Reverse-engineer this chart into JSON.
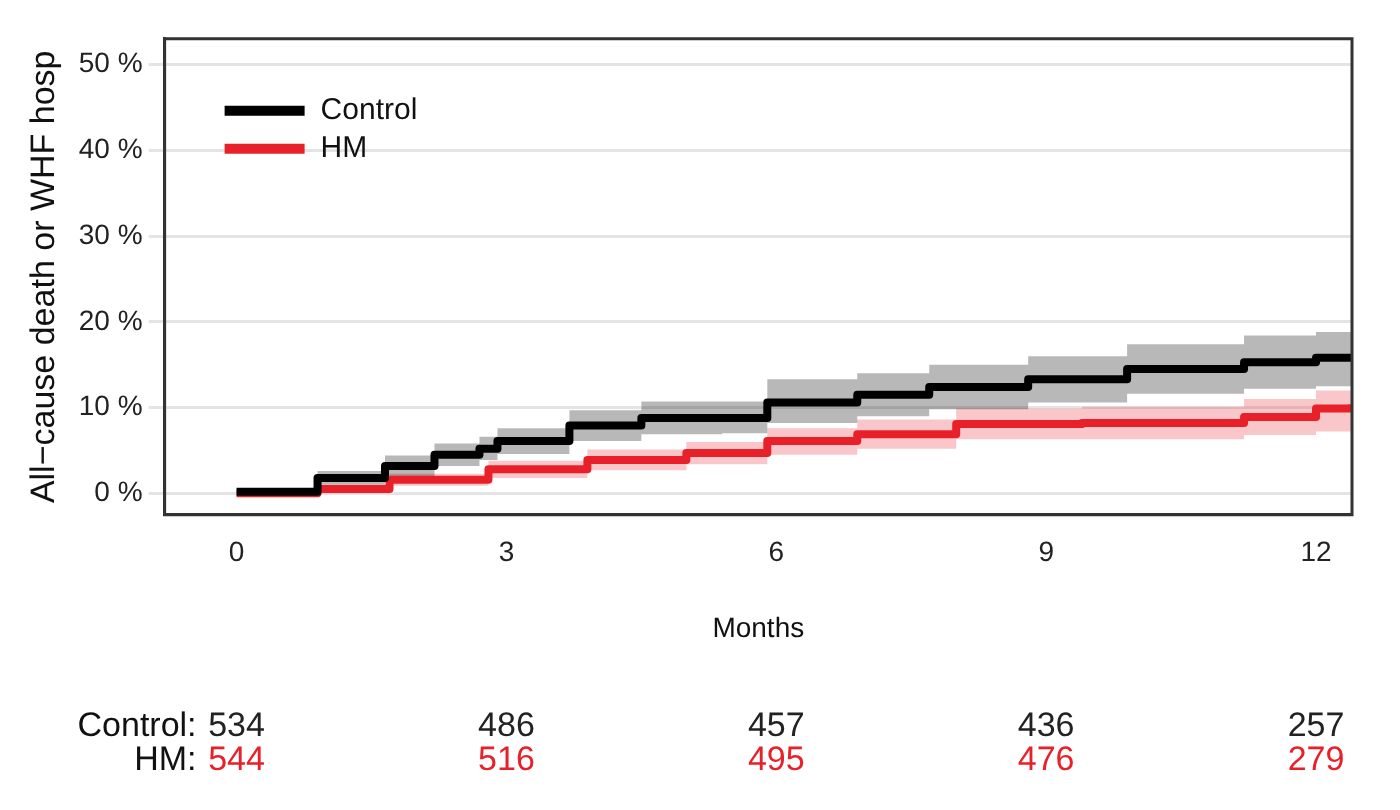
{
  "chart_data": {
    "type": "step",
    "xlabel": "Months",
    "ylabel": "All−cause death or WHF hosp",
    "xlim": [
      -0.8,
      12.4
    ],
    "ylim": [
      -2.5,
      53
    ],
    "xticks": [
      0,
      3,
      6,
      9,
      12
    ],
    "yticks": [
      {
        "value": 0,
        "label": "0 %"
      },
      {
        "value": 10,
        "label": "10 %"
      },
      {
        "value": 20,
        "label": "20 %"
      },
      {
        "value": 30,
        "label": "30 %"
      },
      {
        "value": 40,
        "label": "40 %"
      },
      {
        "value": 50,
        "label": "50 %"
      }
    ],
    "grid": "y",
    "legend": "top left",
    "line_style": "solid",
    "marker": "none",
    "series": [
      {
        "name": "Control",
        "color": "#000000",
        "x": [
          0,
          0.9,
          1.65,
          2.2,
          2.7,
          2.9,
          3.7,
          4.5,
          5.4,
          5.9,
          6.9,
          7.7,
          8.8,
          9.9,
          11.2,
          12,
          12.4
        ],
        "values": [
          0.2,
          1.8,
          3.2,
          4.5,
          5.2,
          6.1,
          7.9,
          8.8,
          8.8,
          10.6,
          11.5,
          12.4,
          13.3,
          14.5,
          15.3,
          15.8,
          16
        ],
        "lower": [
          0,
          1,
          2,
          3.2,
          3.9,
          4.6,
          6.1,
          6.9,
          7,
          8.2,
          9,
          9.8,
          10.6,
          11.6,
          12.2,
          12.5,
          12.6
        ],
        "upper": [
          0.6,
          2.6,
          4.4,
          5.8,
          6.6,
          7.6,
          9.7,
          10.7,
          10.7,
          13.3,
          14,
          15,
          16,
          17.4,
          18.4,
          18.8,
          19
        ]
      },
      {
        "name": "HM",
        "color": "#e8202a",
        "x": [
          0,
          0.9,
          1.7,
          2.8,
          3.9,
          5,
          5.9,
          6.9,
          8,
          9.4,
          11.2,
          12,
          12.4
        ],
        "values": [
          0,
          0.5,
          1.6,
          2.8,
          3.9,
          4.7,
          6.1,
          6.9,
          8.1,
          8.2,
          8.9,
          9.9,
          10.4
        ],
        "lower": [
          0,
          0,
          0.9,
          1.8,
          2.7,
          3.4,
          4.5,
          5.2,
          6.3,
          6.3,
          6.8,
          7.2,
          7.2
        ],
        "upper": [
          0.3,
          1,
          2.3,
          3.8,
          5.1,
          6,
          7.6,
          8.6,
          9.9,
          10.1,
          11,
          12,
          12.4
        ]
      }
    ],
    "annotations": [
      "Control:",
      "534",
      "486",
      "457",
      "436",
      "257",
      "HM:",
      "544",
      "516",
      "495",
      "476",
      "279"
    ]
  }
}
